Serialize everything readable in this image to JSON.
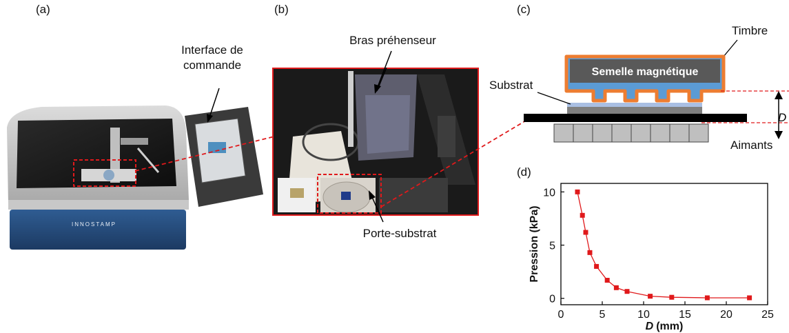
{
  "panels": {
    "a": {
      "label": "(a)",
      "callout": "Interface de commande",
      "callout_line1": "Interface de",
      "callout_line2": "commande",
      "machine_brand": "INNOSTAMP"
    },
    "b": {
      "label": "(b)",
      "arm_callout": "Bras préhenseur",
      "holder_callout": "Porte-substrat"
    },
    "c": {
      "label": "(c)",
      "stamp": "Timbre",
      "sole": "Semelle magnétique",
      "substrate": "Substrat",
      "distance": "D",
      "magnets": "Aimants"
    },
    "d": {
      "label": "(d)"
    }
  },
  "colors": {
    "accent_red": "#e0191b",
    "stamp_blue": "#5b9bd5",
    "stamp_orange": "#ed7d31",
    "sole_gray": "#595959"
  },
  "chart_data": {
    "type": "scatter",
    "xlabel_italic": "D",
    "xlabel_unit": "(mm)",
    "ylabel": "Pression (kPa)",
    "xlim": [
      0,
      25
    ],
    "ylim": [
      -0.6,
      10.8
    ],
    "xticks": [
      "0",
      "5",
      "10",
      "15",
      "20",
      "25"
    ],
    "yticks": [
      "0",
      "5",
      "10"
    ],
    "series": [
      {
        "x": [
          2.0,
          2.6,
          3.0,
          3.5,
          4.3,
          5.6,
          6.7,
          8.0,
          10.8,
          13.4,
          17.7,
          22.8
        ],
        "y": [
          10.0,
          7.8,
          6.2,
          4.3,
          3.0,
          1.7,
          1.0,
          0.65,
          0.2,
          0.1,
          0.05,
          0.05
        ]
      }
    ]
  }
}
